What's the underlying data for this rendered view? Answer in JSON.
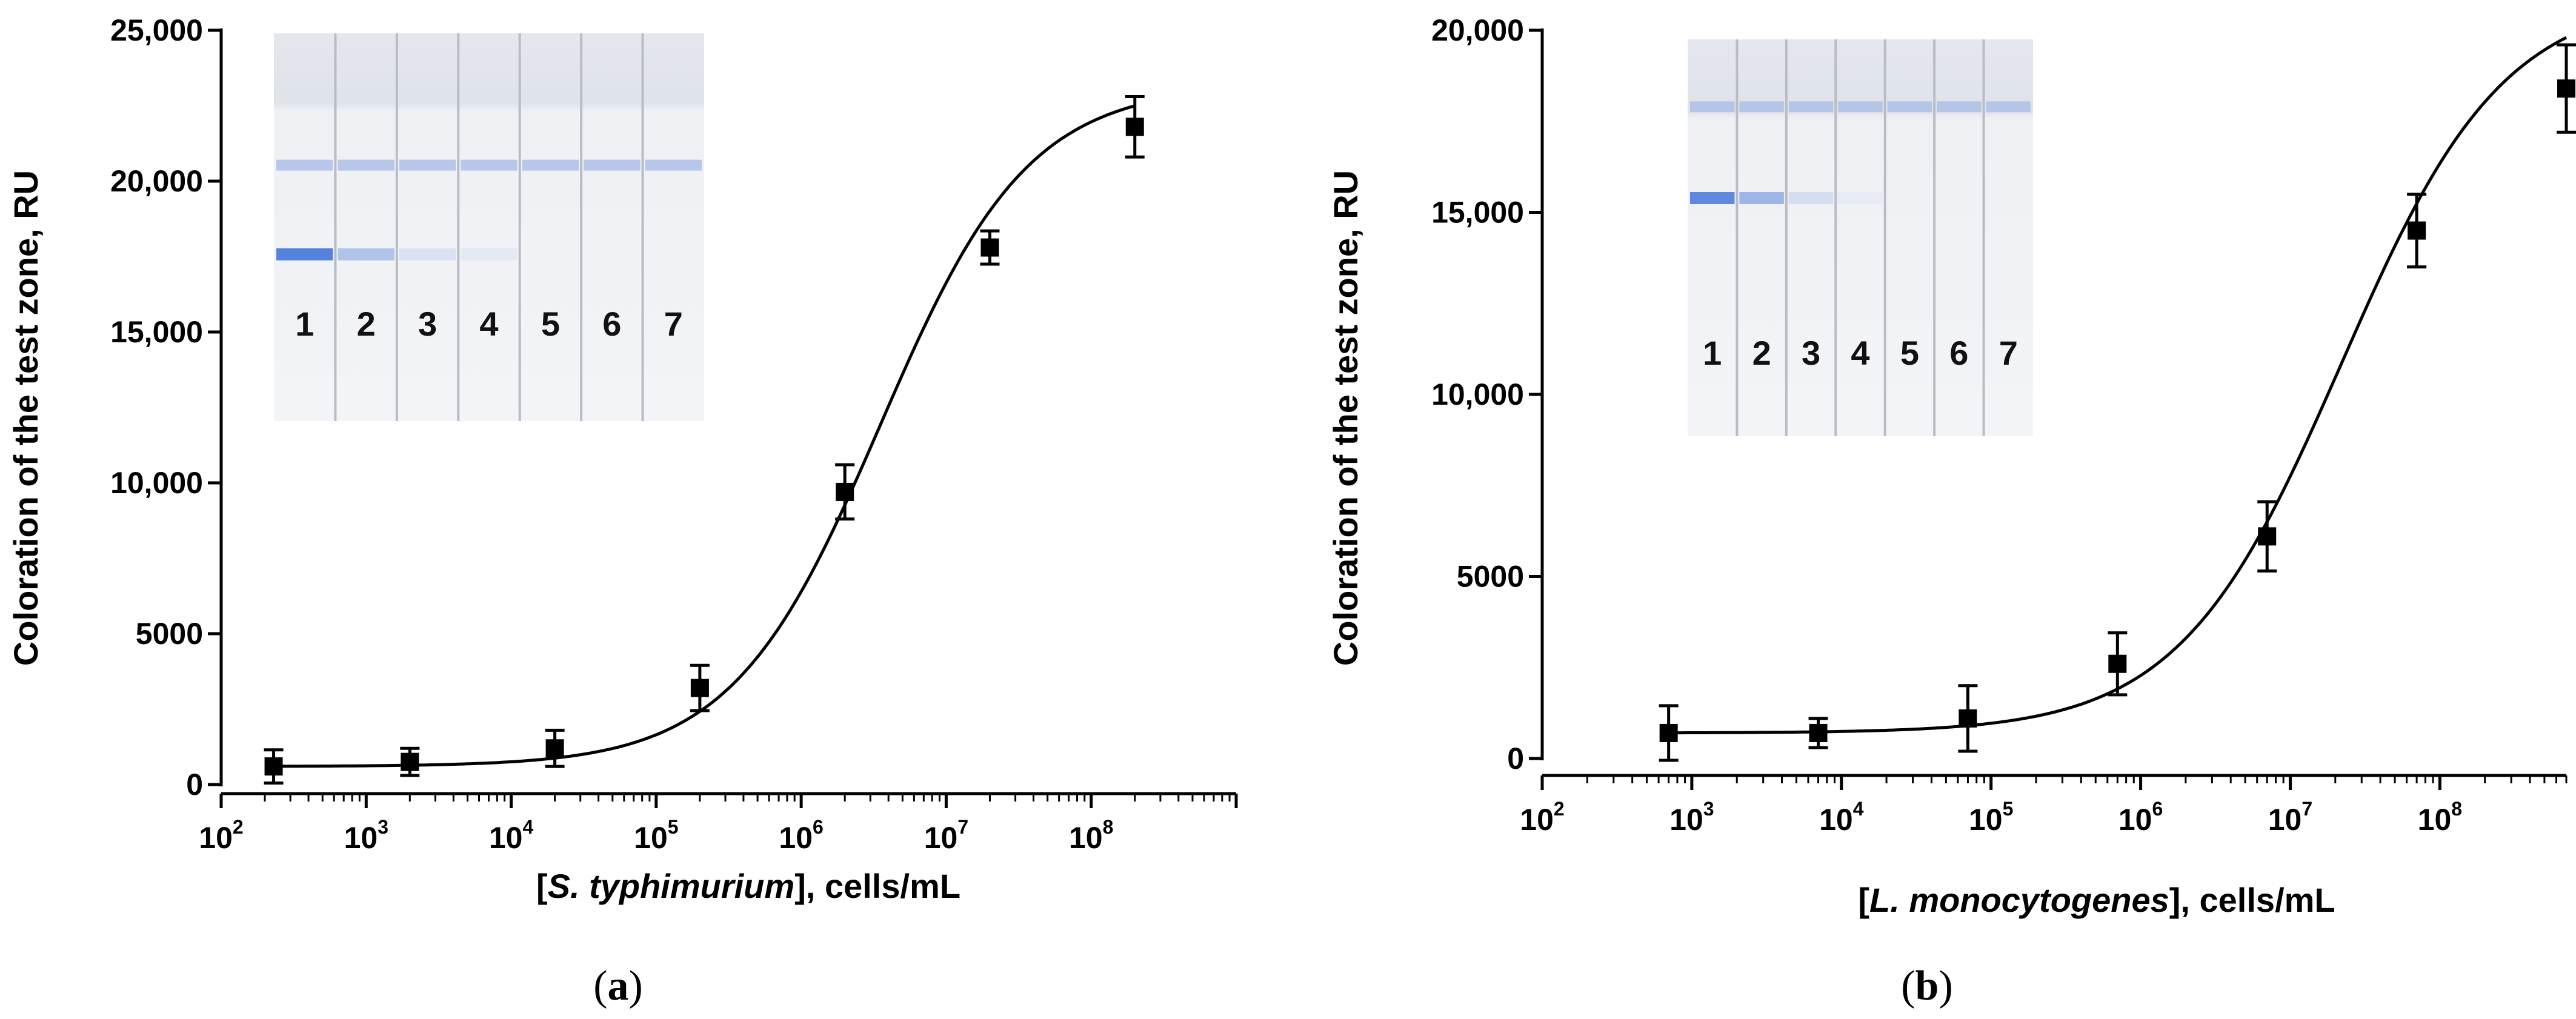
{
  "chart_data": [
    {
      "type": "scatter",
      "panel_label": "a",
      "xlabel_prefix": "[",
      "xlabel_italic": "S. typhimurium",
      "xlabel_suffix": "], cells/mL",
      "ylabel": "Coloration of the test zone, RU",
      "x_scale": "log",
      "xlim": [
        100,
        1000000000
      ],
      "ylim": [
        0,
        25000
      ],
      "x_tick_exponents": [
        2,
        3,
        4,
        5,
        6,
        7,
        8
      ],
      "y_ticks": [
        0,
        5000,
        10000,
        15000,
        20000,
        25000
      ],
      "y_tick_labels": [
        "0",
        "5000",
        "10,000",
        "15,000",
        "20,000",
        "25,000"
      ],
      "points": [
        {
          "x": 230,
          "y": 600,
          "err": 550
        },
        {
          "x": 2000,
          "y": 750,
          "err": 450
        },
        {
          "x": 20000,
          "y": 1200,
          "err": 600
        },
        {
          "x": 200000,
          "y": 3200,
          "err": 750
        },
        {
          "x": 2000000,
          "y": 9700,
          "err": 900
        },
        {
          "x": 20000000,
          "y": 17800,
          "err": 550
        },
        {
          "x": 200000000,
          "y": 21800,
          "err": 1000
        }
      ],
      "fit": {
        "bottom": 600,
        "top": 23200,
        "ec50": 3500000,
        "hill": 0.85
      },
      "inset_strip_labels": [
        "1",
        "2",
        "3",
        "4",
        "5",
        "6",
        "7"
      ]
    },
    {
      "type": "scatter",
      "panel_label": "b",
      "xlabel_prefix": "[",
      "xlabel_italic": "L. monocytogenes",
      "xlabel_suffix": "], cells/mL",
      "ylabel": "Coloration of the test zone, RU",
      "x_scale": "log",
      "xlim": [
        100,
        700000000
      ],
      "ylim": [
        0,
        20000
      ],
      "x_tick_exponents": [
        2,
        3,
        4,
        5,
        6,
        7,
        8
      ],
      "y_ticks": [
        0,
        5000,
        10000,
        15000,
        20000
      ],
      "y_tick_labels": [
        "0",
        "5000",
        "10,000",
        "15,000",
        "20,000"
      ],
      "points": [
        {
          "x": 700,
          "y": 700,
          "err": 750
        },
        {
          "x": 7000,
          "y": 700,
          "err": 400
        },
        {
          "x": 70000,
          "y": 1100,
          "err": 900
        },
        {
          "x": 700000,
          "y": 2600,
          "err": 850
        },
        {
          "x": 7000000,
          "y": 6100,
          "err": 950
        },
        {
          "x": 70000000,
          "y": 14500,
          "err": 1000
        },
        {
          "x": 700000000,
          "y": 18400,
          "err": 1200
        }
      ],
      "fit": {
        "bottom": 700,
        "top": 21000,
        "ec50": 22000000,
        "hill": 0.8
      },
      "inset_strip_labels": [
        "1",
        "2",
        "3",
        "4",
        "5",
        "6",
        "7"
      ]
    }
  ]
}
